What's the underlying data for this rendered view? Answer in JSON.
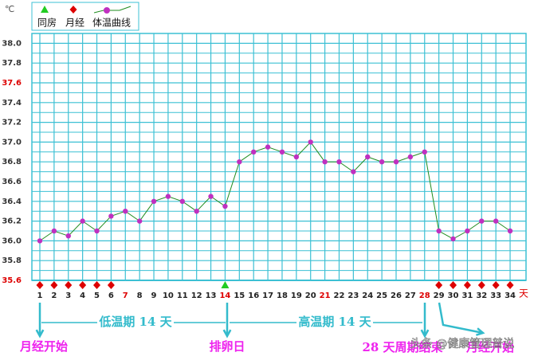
{
  "chart_data": {
    "type": "line",
    "y_unit": "℃",
    "x_unit": "天",
    "categories": [
      1,
      2,
      3,
      4,
      5,
      6,
      7,
      8,
      9,
      10,
      11,
      12,
      13,
      14,
      15,
      16,
      17,
      18,
      19,
      20,
      21,
      22,
      23,
      24,
      25,
      26,
      27,
      28,
      29,
      30,
      31,
      32,
      33,
      34
    ],
    "category_colors": [
      "#222",
      "#222",
      "#222",
      "#222",
      "#222",
      "#222",
      "#dd0000",
      "#222",
      "#222",
      "#222",
      "#222",
      "#222",
      "#222",
      "#dd0000",
      "#222",
      "#222",
      "#222",
      "#222",
      "#222",
      "#222",
      "#dd0000",
      "#222",
      "#222",
      "#222",
      "#222",
      "#222",
      "#222",
      "#dd0000",
      "#222",
      "#222",
      "#222",
      "#222",
      "#222",
      "#222"
    ],
    "series": [
      {
        "name": "体温曲线",
        "color": "#1e8c1e",
        "marker_color": "#c030c0",
        "values": [
          36.0,
          36.1,
          36.05,
          36.2,
          36.1,
          36.25,
          36.3,
          36.2,
          36.4,
          36.45,
          36.4,
          36.3,
          36.45,
          36.35,
          36.8,
          36.9,
          36.95,
          36.9,
          36.85,
          37.0,
          36.8,
          36.8,
          36.7,
          36.85,
          36.8,
          36.8,
          36.85,
          36.9,
          36.1,
          36.02,
          36.1,
          36.2,
          36.2,
          36.1
        ]
      }
    ],
    "markers": [
      {
        "name": "同房",
        "color": "#22cc22",
        "shape": "triangle",
        "days": [
          14
        ]
      },
      {
        "name": "月经",
        "color": "#dd0000",
        "shape": "diamond",
        "days": [
          1,
          2,
          3,
          4,
          5,
          6,
          29,
          30,
          31,
          32,
          33,
          34
        ]
      }
    ],
    "ylim": [
      35.6,
      38.1
    ],
    "yticks": [
      35.6,
      35.8,
      {
        "value": 36.0,
        "label": "36.0"
      },
      36.2,
      36.4,
      36.6,
      36.8,
      {
        "value": 37.0,
        "label": "37.0"
      },
      37.2,
      37.4,
      37.6,
      37.8,
      {
        "value": 38.0,
        "label": "38.0"
      }
    ],
    "ytick_colors": [
      "#dd0000",
      "#333",
      "#333",
      "#333",
      "#333",
      "#333",
      "#333",
      "#333",
      "#333",
      "#333",
      "#dd0000",
      "#333",
      "#333"
    ],
    "grid": true,
    "grid_color": "#3cc0d4",
    "annotations": [
      "月经开始",
      "低温期 14 天",
      "排卵日",
      "高温期 14 天",
      "28 天周期结束",
      "月经开始"
    ],
    "watermark": "头条 @健康管理普说"
  }
}
